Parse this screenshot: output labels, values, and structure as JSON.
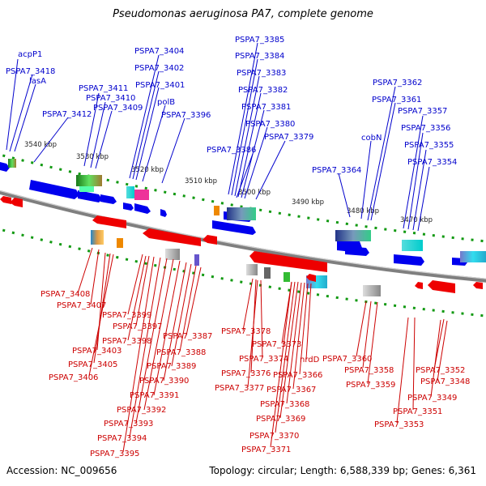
{
  "title": "Pseudomonas aeruginosa PA7, complete genome",
  "footer": {
    "accession": "Accession: NC_009656",
    "stats": "Topology: circular; Length: 6,588,339 bp; Genes: 6,361"
  },
  "colors": {
    "forward_label": "#0000cc",
    "reverse_label": "#cc0000",
    "forward_gene": "#0000ee",
    "reverse_gene": "#ee0000",
    "backbone": "#888888",
    "tick": "#119911"
  },
  "kbp_ticks": [
    {
      "label": "3540 kbp"
    },
    {
      "label": "3530 kbp"
    },
    {
      "label": "3520 kbp"
    },
    {
      "label": "3510 kbp"
    },
    {
      "label": "3500 kbp"
    },
    {
      "label": "3490 kbp"
    },
    {
      "label": "3480 kbp"
    },
    {
      "label": "3470 kbp"
    }
  ],
  "forward_labels": [
    "acpP1",
    "PSPA7_3418",
    "lasA",
    "PSPA7_3412",
    "PSPA7_3411",
    "PSPA7_3410",
    "PSPA7_3409",
    "PSPA7_3404",
    "PSPA7_3402",
    "PSPA7_3401",
    "polB",
    "PSPA7_3396",
    "PSPA7_3385",
    "PSPA7_3384",
    "PSPA7_3383",
    "PSPA7_3382",
    "PSPA7_3381",
    "PSPA7_3380",
    "PSPA7_3379",
    "PSPA7_3386",
    "PSPA7_3364",
    "cobN",
    "PSPA7_3362",
    "PSPA7_3361",
    "PSPA7_3357",
    "PSPA7_3356",
    "PSPA7_3355",
    "PSPA7_3354"
  ],
  "reverse_labels": [
    "PSPA7_3408",
    "PSPA7_3407",
    "PSPA7_3399",
    "PSPA7_3397",
    "PSPA7_3398",
    "PSPA7_3403",
    "PSPA7_3405",
    "PSPA7_3406",
    "PSPA7_3387",
    "PSPA7_3388",
    "PSPA7_3389",
    "PSPA7_3390",
    "PSPA7_3391",
    "PSPA7_3392",
    "PSPA7_3393",
    "PSPA7_3394",
    "PSPA7_3395",
    "PSPA7_3378",
    "PSPA7_3373",
    "PSPA7_3374",
    "PSPA7_3376",
    "PSPA7_3377",
    "nrdD",
    "PSPA7_3366",
    "PSPA7_3367",
    "PSPA7_3368",
    "PSPA7_3369",
    "PSPA7_3370",
    "PSPA7_3371",
    "PSPA7_3360",
    "PSPA7_3358",
    "PSPA7_3359",
    "PSPA7_3352",
    "PSPA7_3348",
    "PSPA7_3349",
    "PSPA7_3351",
    "PSPA7_3353"
  ]
}
